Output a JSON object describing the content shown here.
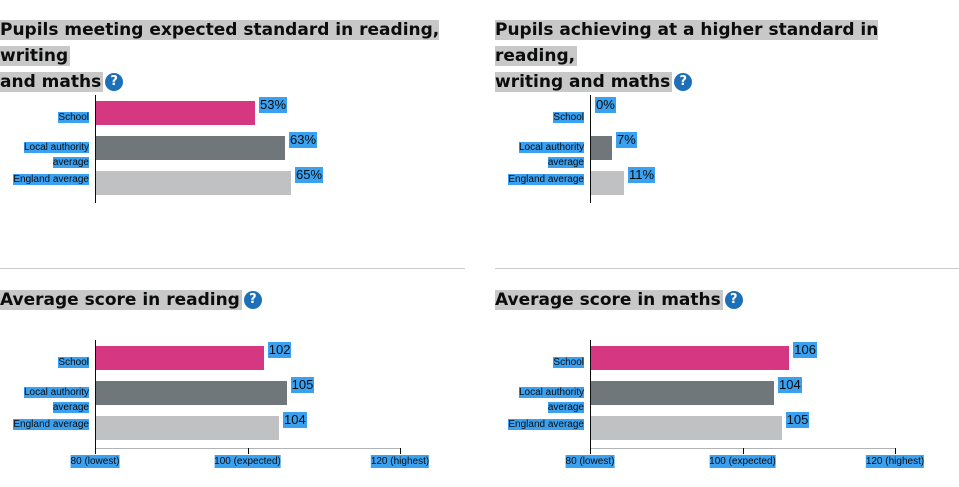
{
  "colors": {
    "school": "#d53880",
    "la": "#6f777b",
    "england": "#bfc1c3",
    "accent": "#1d70b8"
  },
  "chart_data": [
    {
      "type": "bar",
      "orientation": "horizontal",
      "title_line1": "Pupils meeting expected standard in reading, writing",
      "title_line2": "and maths",
      "categories": [
        {
          "line1": "School",
          "line2": ""
        },
        {
          "line1": "Local authority",
          "line2": "average"
        },
        {
          "line1": "England average",
          "line2": ""
        }
      ],
      "values": [
        53,
        63,
        65
      ],
      "value_labels": [
        "53%",
        "63%",
        "65%"
      ],
      "xlim": [
        0,
        100
      ],
      "ticks": []
    },
    {
      "type": "bar",
      "orientation": "horizontal",
      "title_line1": "Pupils achieving at a higher standard in reading,",
      "title_line2": "writing and maths",
      "categories": [
        {
          "line1": "School",
          "line2": ""
        },
        {
          "line1": "Local authority",
          "line2": "average"
        },
        {
          "line1": "England average",
          "line2": ""
        }
      ],
      "values": [
        0,
        7,
        11
      ],
      "value_labels": [
        "0%",
        "7%",
        "11%"
      ],
      "xlim": [
        0,
        100
      ],
      "ticks": []
    },
    {
      "type": "bar",
      "orientation": "horizontal",
      "title_line1": "Average score in reading",
      "title_line2": "",
      "categories": [
        {
          "line1": "School",
          "line2": ""
        },
        {
          "line1": "Local authority",
          "line2": "average"
        },
        {
          "line1": "England average",
          "line2": ""
        }
      ],
      "values": [
        102,
        105,
        104
      ],
      "value_labels": [
        "102",
        "105",
        "104"
      ],
      "xlim": [
        80,
        120
      ],
      "ticks": [
        {
          "value": 80,
          "label": "80 (lowest)"
        },
        {
          "value": 100,
          "label": "100 (expected)"
        },
        {
          "value": 120,
          "label": "120 (highest)"
        }
      ]
    },
    {
      "type": "bar",
      "orientation": "horizontal",
      "title_line1": "Average score in maths",
      "title_line2": "",
      "categories": [
        {
          "line1": "School",
          "line2": ""
        },
        {
          "line1": "Local authority",
          "line2": "average"
        },
        {
          "line1": "England average",
          "line2": ""
        }
      ],
      "values": [
        106,
        104,
        105
      ],
      "value_labels": [
        "106",
        "104",
        "105"
      ],
      "xlim": [
        80,
        120
      ],
      "ticks": [
        {
          "value": 80,
          "label": "80 (lowest)"
        },
        {
          "value": 100,
          "label": "100 (expected)"
        },
        {
          "value": 120,
          "label": "120 (highest)"
        }
      ]
    }
  ],
  "help_glyph": "?"
}
